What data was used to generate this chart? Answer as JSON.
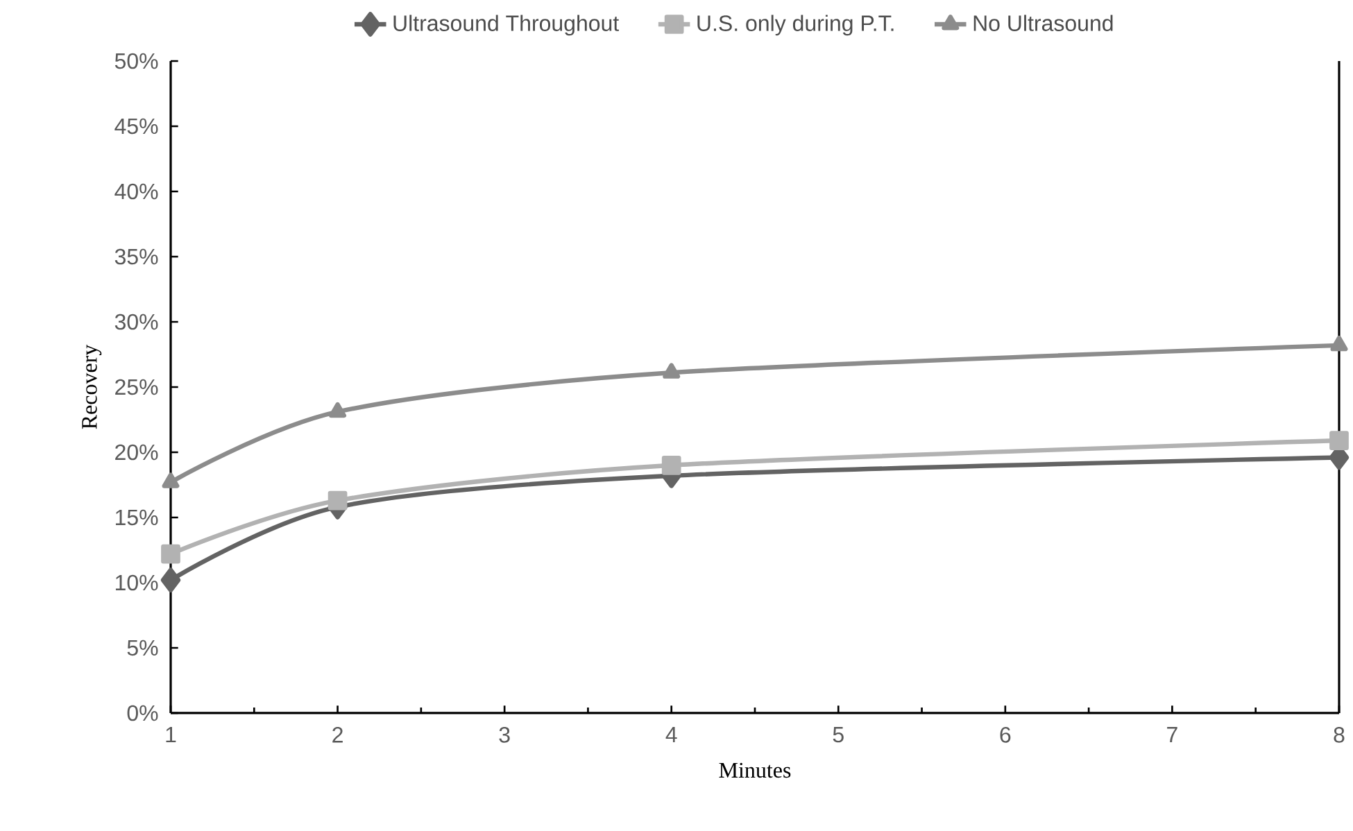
{
  "chart_data": {
    "type": "line",
    "xlabel": "Minutes",
    "ylabel": "Recovery",
    "x": [
      1,
      2,
      4,
      8
    ],
    "series": [
      {
        "name": "Ultrasound Throughout",
        "color": "#636363",
        "marker": "diamond",
        "values": [
          10.2,
          15.8,
          18.2,
          19.6
        ]
      },
      {
        "name": "U.S. only during P.T.",
        "color": "#b2b2b2",
        "marker": "square",
        "values": [
          12.2,
          16.3,
          19.0,
          20.9
        ]
      },
      {
        "name": "No Ultrasound",
        "color": "#8c8c8c",
        "marker": "triangle",
        "values": [
          17.7,
          23.1,
          26.1,
          28.2
        ]
      }
    ],
    "xlim": [
      1,
      8
    ],
    "xticks": [
      1,
      2,
      3,
      4,
      5,
      6,
      7,
      8
    ],
    "ylim": [
      0,
      50
    ],
    "yticks": [
      {
        "value": 0,
        "label": "0%"
      },
      {
        "value": 5,
        "label": "5%"
      },
      {
        "value": 10,
        "label": "10%"
      },
      {
        "value": 15,
        "label": "15%"
      },
      {
        "value": 20,
        "label": "20%"
      },
      {
        "value": 25,
        "label": "25%"
      },
      {
        "value": 30,
        "label": "30%"
      },
      {
        "value": 35,
        "label": "35%"
      },
      {
        "value": 40,
        "label": "40%"
      },
      {
        "value": 45,
        "label": "45%"
      },
      {
        "value": 50,
        "label": "50%"
      }
    ],
    "grid": false,
    "legend": "top",
    "line_style": "solid"
  }
}
